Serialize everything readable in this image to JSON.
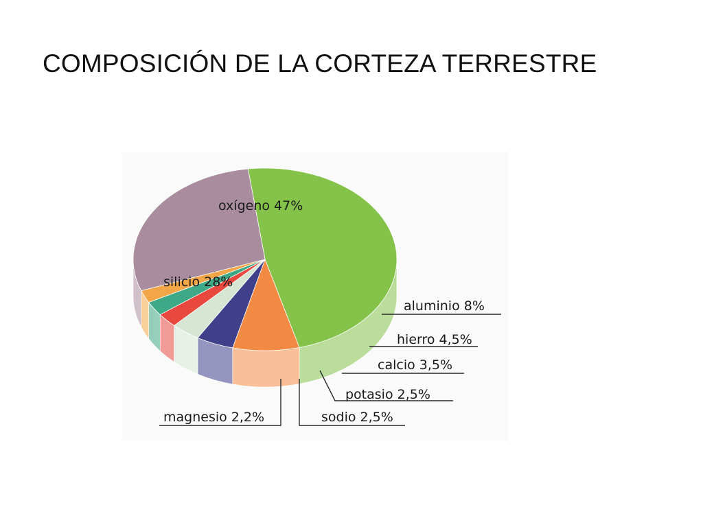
{
  "slide": {
    "title": "COMPOSICIÓN DE LA CORTEZA TERRESTRE"
  },
  "chart_data": {
    "type": "pie",
    "title": "",
    "slices": [
      {
        "name": "oxígeno",
        "value": 47,
        "label": "oxígeno 47%",
        "color": "#84c24a",
        "placement": "inside"
      },
      {
        "name": "aluminio",
        "value": 8,
        "label": "aluminio 8%",
        "color": "#f28a44",
        "placement": "callout"
      },
      {
        "name": "hierro",
        "value": 4.5,
        "label": "hierro 4,5%",
        "color": "#3f3f8a",
        "placement": "callout"
      },
      {
        "name": "calcio",
        "value": 3.5,
        "label": "calcio 3,5%",
        "color": "#d6e6d2",
        "placement": "callout"
      },
      {
        "name": "potasio",
        "value": 2.5,
        "label": "potasio 2,5%",
        "color": "#e8483e",
        "placement": "callout"
      },
      {
        "name": "sodio",
        "value": 2.5,
        "label": "sodio 2,5%",
        "color": "#3fa886",
        "placement": "callout"
      },
      {
        "name": "magnesio",
        "value": 2.2,
        "label": "magnesio 2,2%",
        "color": "#f2a648",
        "placement": "callout"
      },
      {
        "name": "silicio",
        "value": 28,
        "label": "silicio 28%",
        "color": "#a98d9e",
        "placement": "inside"
      }
    ],
    "style": "3d-cylinder",
    "legend": "none"
  }
}
